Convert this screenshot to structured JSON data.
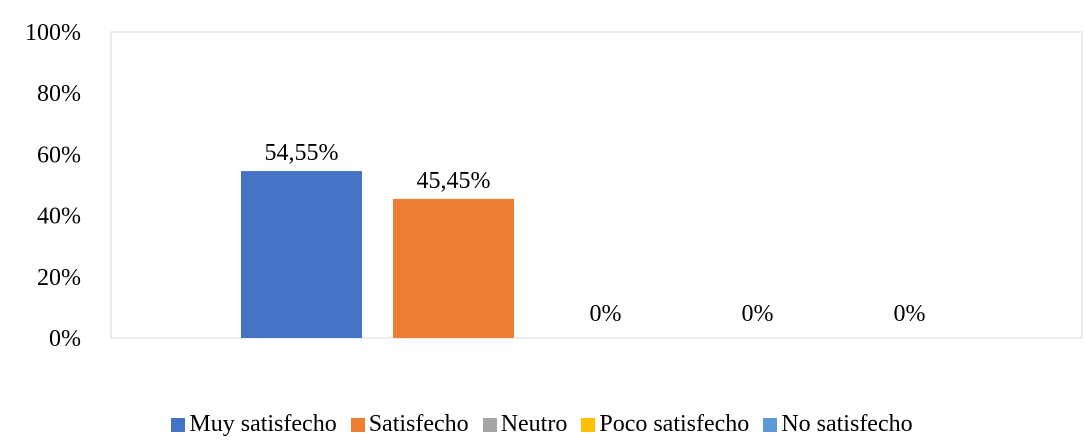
{
  "chart_data": {
    "type": "bar",
    "title": "",
    "xlabel": "",
    "ylabel": "",
    "ylim": [
      0,
      100
    ],
    "y_ticks": [
      "0%",
      "20%",
      "40%",
      "60%",
      "80%",
      "100%"
    ],
    "grid": false,
    "legend_position": "bottom",
    "series": [
      {
        "name": "Muy satisfecho",
        "value": 54.55,
        "label": "54,55%",
        "color": "#4472C4"
      },
      {
        "name": "Satisfecho",
        "value": 45.45,
        "label": "45,45%",
        "color": "#ED7D31"
      },
      {
        "name": "Neutro",
        "value": 0,
        "label": "0%",
        "color": "#A5A5A5"
      },
      {
        "name": "Poco satisfecho",
        "value": 0,
        "label": "0%",
        "color": "#FFC000"
      },
      {
        "name": "No satisfecho",
        "value": 0,
        "label": "0%",
        "color": "#5B9BD5"
      }
    ]
  }
}
